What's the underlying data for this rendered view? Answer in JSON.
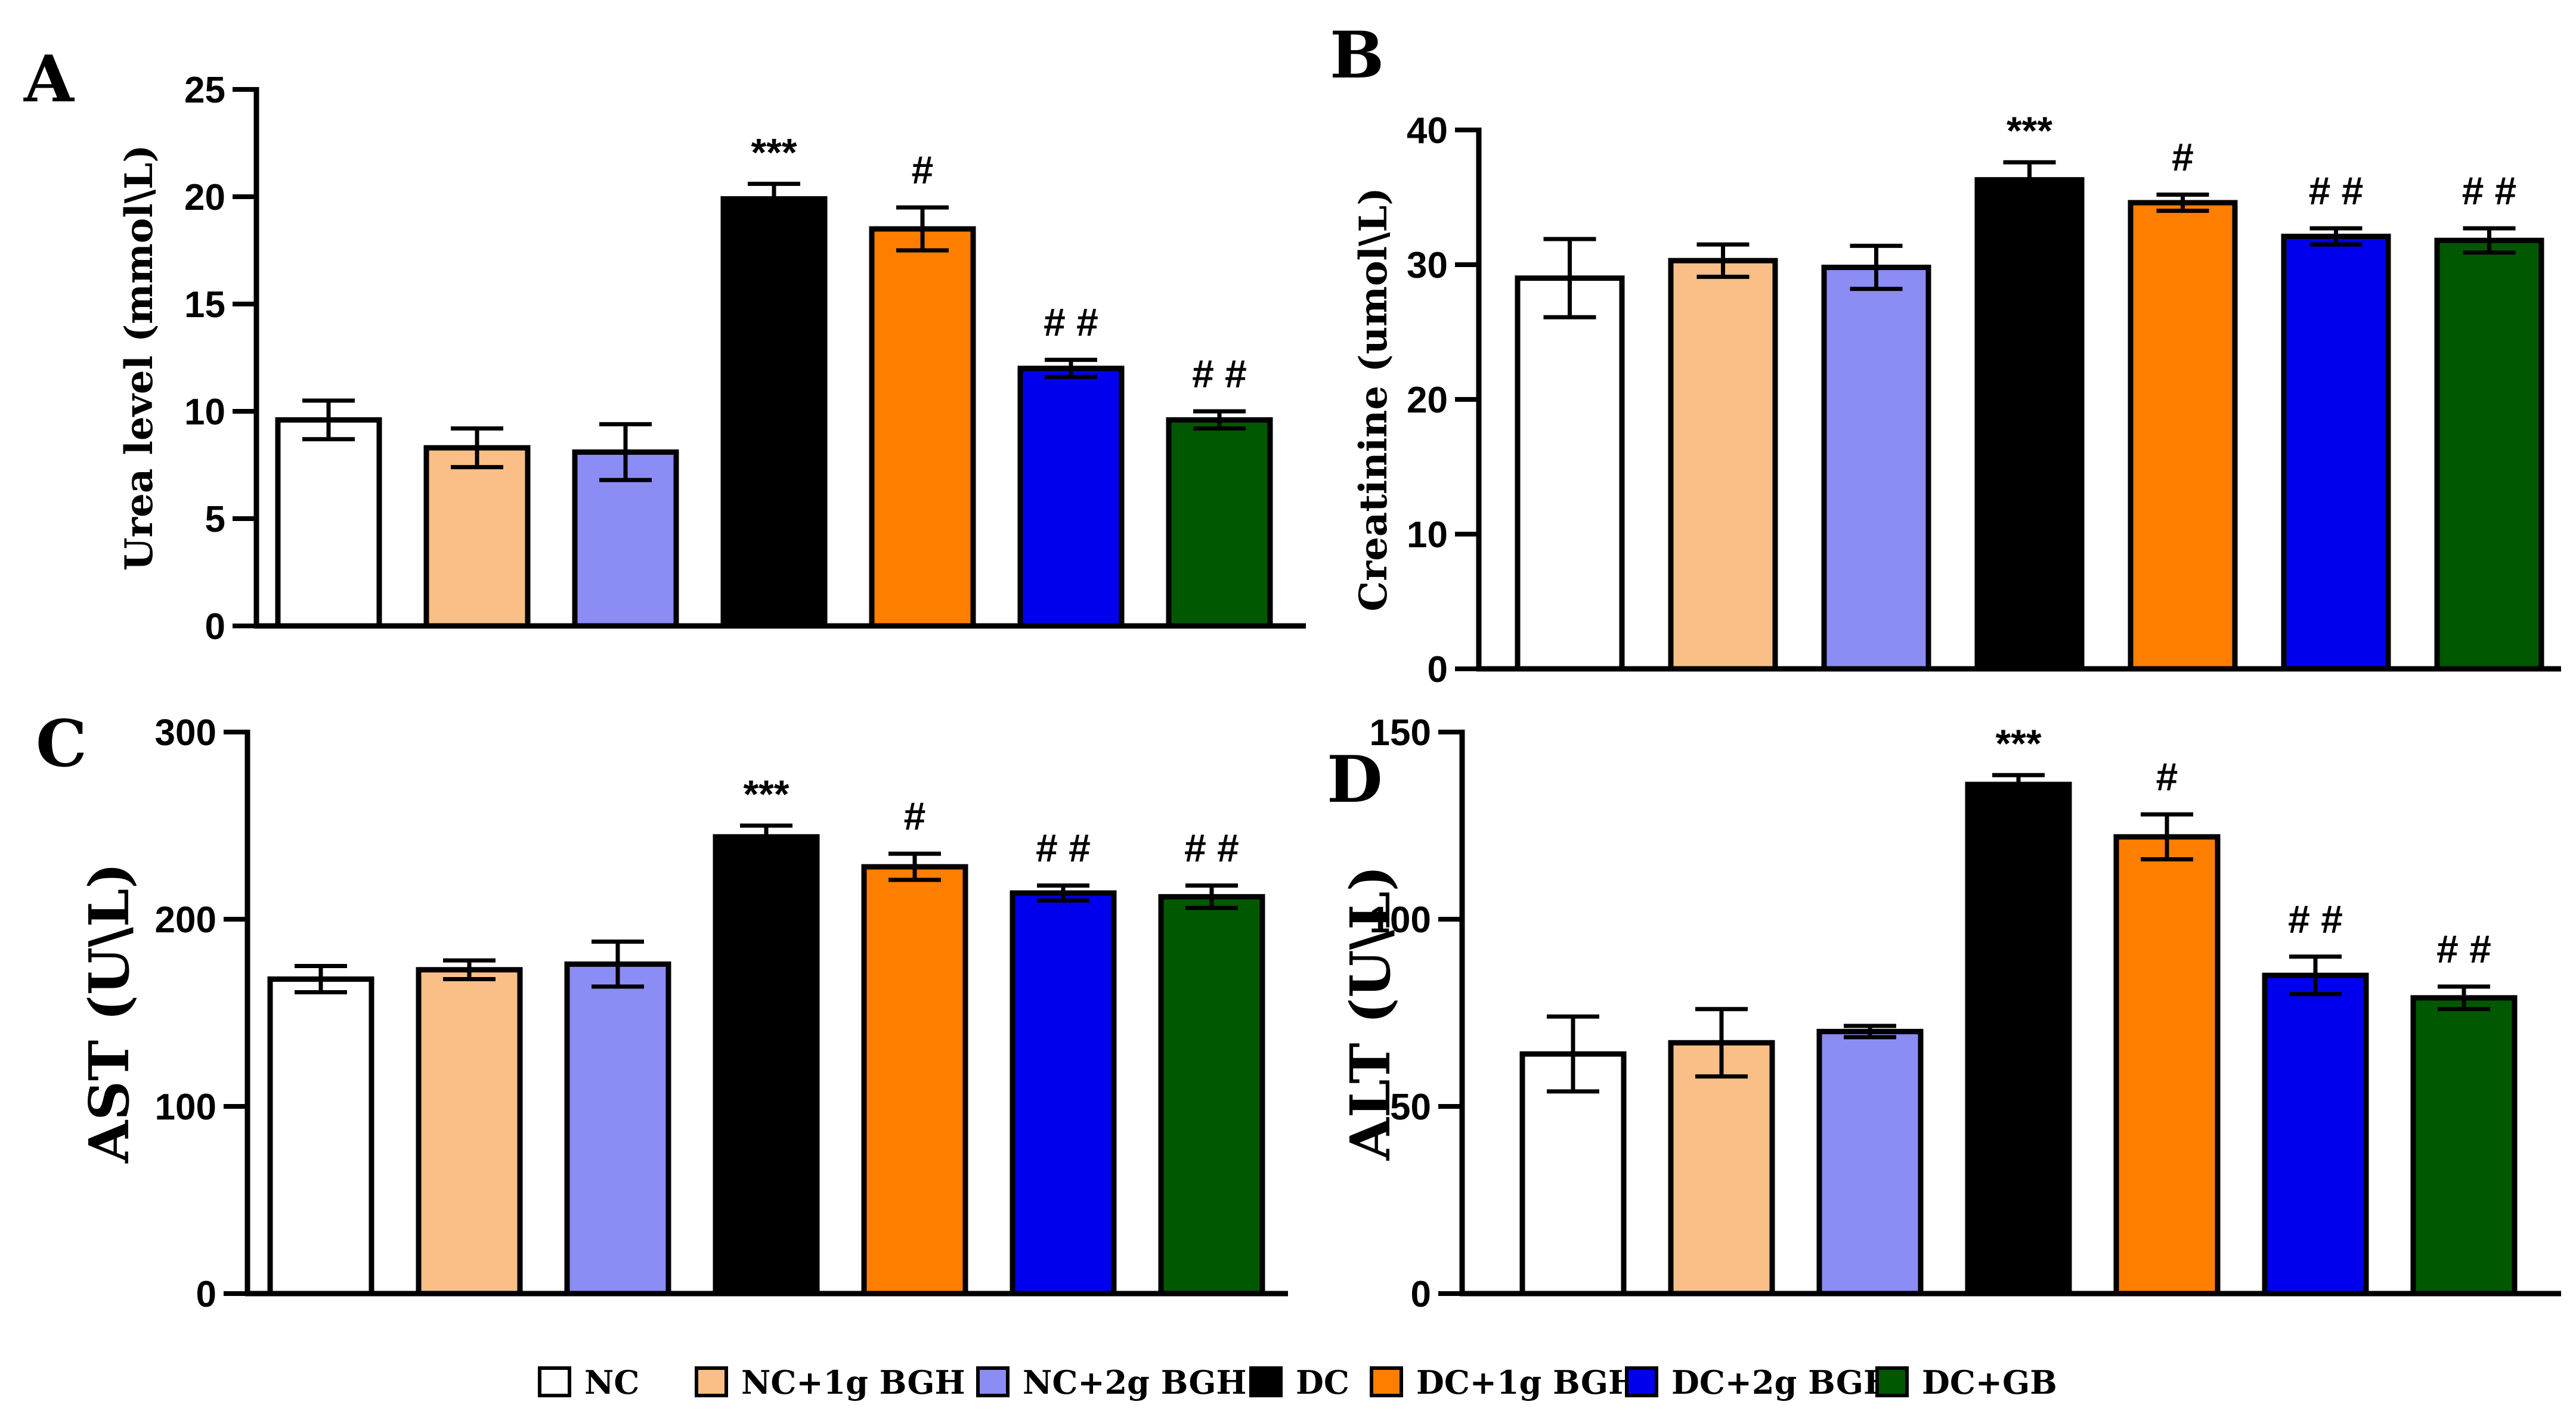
{
  "chart_data": [
    {
      "type": "bar",
      "panel": "A",
      "ylabel": "Urea level (mmol\\L)",
      "ylim": [
        0,
        25
      ],
      "yticks": [
        0,
        5,
        10,
        15,
        20,
        25
      ],
      "categories": [
        "NC",
        "NC+1g BGH",
        "NC+2g BGH",
        "DC",
        "DC+1g BGH",
        "DC+2g BGH",
        "DC+GB"
      ],
      "values": [
        9.6,
        8.3,
        8.1,
        19.9,
        18.5,
        12.0,
        9.6
      ],
      "errors": [
        0.9,
        0.9,
        1.3,
        0.7,
        1.0,
        0.4,
        0.4
      ],
      "annotations": [
        "",
        "",
        "",
        "***",
        "#",
        "##",
        "##"
      ]
    },
    {
      "type": "bar",
      "panel": "B",
      "ylabel": "Creatinine (umol\\L)",
      "ylim": [
        0,
        40
      ],
      "yticks": [
        0,
        10,
        20,
        30,
        40
      ],
      "categories": [
        "NC",
        "NC+1g BGH",
        "NC+2g BGH",
        "DC",
        "DC+1g BGH",
        "DC+2g BGH",
        "DC+GB"
      ],
      "values": [
        29.0,
        30.3,
        29.8,
        36.3,
        34.6,
        32.1,
        31.8
      ],
      "errors": [
        2.9,
        1.2,
        1.6,
        1.3,
        0.6,
        0.6,
        0.9
      ],
      "annotations": [
        "",
        "",
        "",
        "***",
        "#",
        "##",
        "##"
      ]
    },
    {
      "type": "bar",
      "panel": "C",
      "ylabel": "AST (U\\L)",
      "ylim": [
        0,
        300
      ],
      "yticks": [
        0,
        100,
        200,
        300
      ],
      "categories": [
        "NC",
        "NC+1g BGH",
        "NC+2g BGH",
        "DC",
        "DC+1g BGH",
        "DC+2g BGH",
        "DC+GB"
      ],
      "values": [
        168,
        173,
        176,
        244,
        228,
        214,
        212
      ],
      "errors": [
        7,
        5,
        12,
        6,
        7,
        4,
        6
      ],
      "annotations": [
        "",
        "",
        "",
        "***",
        "#",
        "##",
        "##"
      ]
    },
    {
      "type": "bar",
      "panel": "D",
      "ylabel": "ALT (U\\L)",
      "ylim": [
        0,
        150
      ],
      "yticks": [
        0,
        50,
        100,
        150
      ],
      "categories": [
        "NC",
        "NC+1g BGH",
        "NC+2g BGH",
        "DC",
        "DC+1g BGH",
        "DC+2g BGH",
        "DC+GB"
      ],
      "values": [
        64,
        67,
        70,
        136,
        122,
        85,
        79
      ],
      "errors": [
        10,
        9,
        1.5,
        2.5,
        6,
        5,
        3
      ],
      "annotations": [
        "",
        "",
        "",
        "***",
        "#",
        "##",
        "##"
      ]
    }
  ],
  "legend": [
    {
      "label": "NC",
      "color": "#ffffff"
    },
    {
      "label": "NC+1g BGH",
      "color": "#f9bf87"
    },
    {
      "label": "NC+2g BGH",
      "color": "#8c8cf5"
    },
    {
      "label": "DC",
      "color": "#000000"
    },
    {
      "label": "DC+1g BGH",
      "color": "#fe7f00"
    },
    {
      "label": "DC+2g BGH",
      "color": "#0000ee"
    },
    {
      "label": "DC+GB",
      "color": "#005800"
    }
  ]
}
